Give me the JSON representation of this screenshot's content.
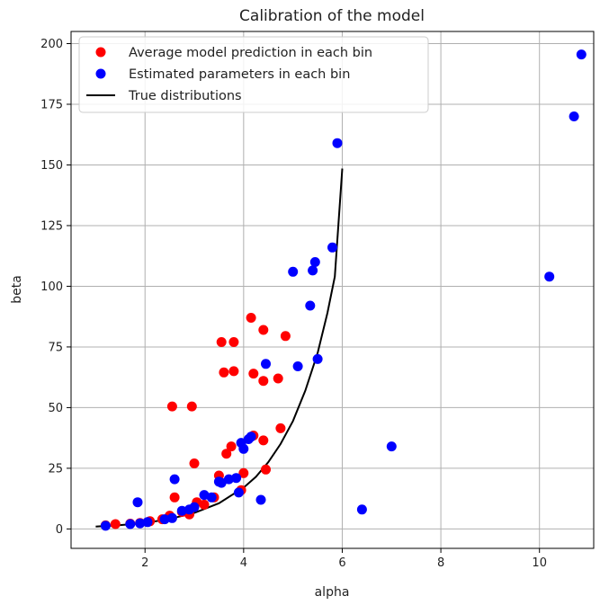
{
  "chart_data": {
    "type": "scatter",
    "title": "Calibration of the model",
    "xlabel": "alpha",
    "ylabel": "beta",
    "xlim": [
      0.5,
      11.1
    ],
    "ylim": [
      -8,
      205
    ],
    "xticks": [
      2,
      4,
      6,
      8,
      10
    ],
    "yticks": [
      0,
      25,
      50,
      75,
      100,
      125,
      150,
      175,
      200
    ],
    "grid": true,
    "legend_position": "top-left",
    "series": [
      {
        "name": "Average model prediction in each bin",
        "kind": "scatter",
        "color": "#ff0000",
        "points": [
          [
            1.2,
            1.5
          ],
          [
            1.4,
            2.0
          ],
          [
            1.7,
            2.2
          ],
          [
            1.9,
            2.5
          ],
          [
            2.1,
            3.2
          ],
          [
            2.35,
            4.0
          ],
          [
            2.5,
            5.5
          ],
          [
            2.55,
            50.5
          ],
          [
            2.6,
            13.0
          ],
          [
            2.75,
            7.0
          ],
          [
            2.9,
            6.0
          ],
          [
            2.95,
            50.5
          ],
          [
            3.0,
            27.0
          ],
          [
            3.05,
            11.0
          ],
          [
            3.2,
            10.0
          ],
          [
            3.4,
            13.0
          ],
          [
            3.5,
            22.0
          ],
          [
            3.55,
            77.0
          ],
          [
            3.6,
            64.5
          ],
          [
            3.65,
            31.0
          ],
          [
            3.75,
            34.0
          ],
          [
            3.8,
            65.0
          ],
          [
            3.8,
            77.0
          ],
          [
            3.95,
            16.0
          ],
          [
            4.0,
            23.0
          ],
          [
            4.15,
            87.0
          ],
          [
            4.2,
            38.5
          ],
          [
            4.2,
            64.0
          ],
          [
            4.4,
            36.5
          ],
          [
            4.4,
            82.0
          ],
          [
            4.4,
            61.0
          ],
          [
            4.45,
            24.5
          ],
          [
            4.7,
            62.0
          ],
          [
            4.75,
            41.5
          ],
          [
            4.85,
            79.5
          ]
        ]
      },
      {
        "name": "Estimated parameters in each bin",
        "kind": "scatter",
        "color": "#0000ff",
        "points": [
          [
            1.2,
            1.3
          ],
          [
            1.7,
            2.0
          ],
          [
            1.85,
            11.0
          ],
          [
            1.9,
            2.3
          ],
          [
            2.05,
            2.8
          ],
          [
            2.4,
            4.0
          ],
          [
            2.55,
            4.5
          ],
          [
            2.6,
            20.5
          ],
          [
            2.75,
            7.5
          ],
          [
            2.9,
            8.0
          ],
          [
            3.0,
            9.0
          ],
          [
            3.2,
            14.0
          ],
          [
            3.35,
            13.0
          ],
          [
            3.5,
            19.5
          ],
          [
            3.55,
            19.0
          ],
          [
            3.7,
            20.5
          ],
          [
            3.85,
            21.0
          ],
          [
            3.9,
            15.0
          ],
          [
            3.95,
            35.5
          ],
          [
            4.0,
            33.0
          ],
          [
            4.1,
            37.0
          ],
          [
            4.15,
            38.0
          ],
          [
            4.35,
            12.0
          ],
          [
            4.45,
            68.0
          ],
          [
            5.0,
            106.0
          ],
          [
            5.1,
            67.0
          ],
          [
            5.35,
            92.0
          ],
          [
            5.4,
            106.5
          ],
          [
            5.45,
            110.0
          ],
          [
            5.5,
            70.0
          ],
          [
            5.8,
            116.0
          ],
          [
            5.9,
            159.0
          ],
          [
            6.4,
            8.0
          ],
          [
            7.0,
            34.0
          ],
          [
            10.2,
            104.0
          ],
          [
            10.7,
            170.0
          ],
          [
            10.85,
            195.5
          ]
        ]
      },
      {
        "name": "True distributions",
        "kind": "line",
        "color": "#000000",
        "points": [
          [
            1.0,
            1.0
          ],
          [
            1.5,
            1.6
          ],
          [
            2.0,
            2.5
          ],
          [
            2.5,
            4.1
          ],
          [
            3.0,
            6.6
          ],
          [
            3.5,
            10.6
          ],
          [
            4.0,
            17.0
          ],
          [
            4.25,
            21.5
          ],
          [
            4.5,
            27.5
          ],
          [
            4.75,
            35.0
          ],
          [
            5.0,
            44.5
          ],
          [
            5.25,
            57.0
          ],
          [
            5.5,
            72.5
          ],
          [
            5.7,
            89.0
          ],
          [
            5.85,
            104.0
          ],
          [
            6.0,
            148.5
          ]
        ]
      }
    ]
  }
}
